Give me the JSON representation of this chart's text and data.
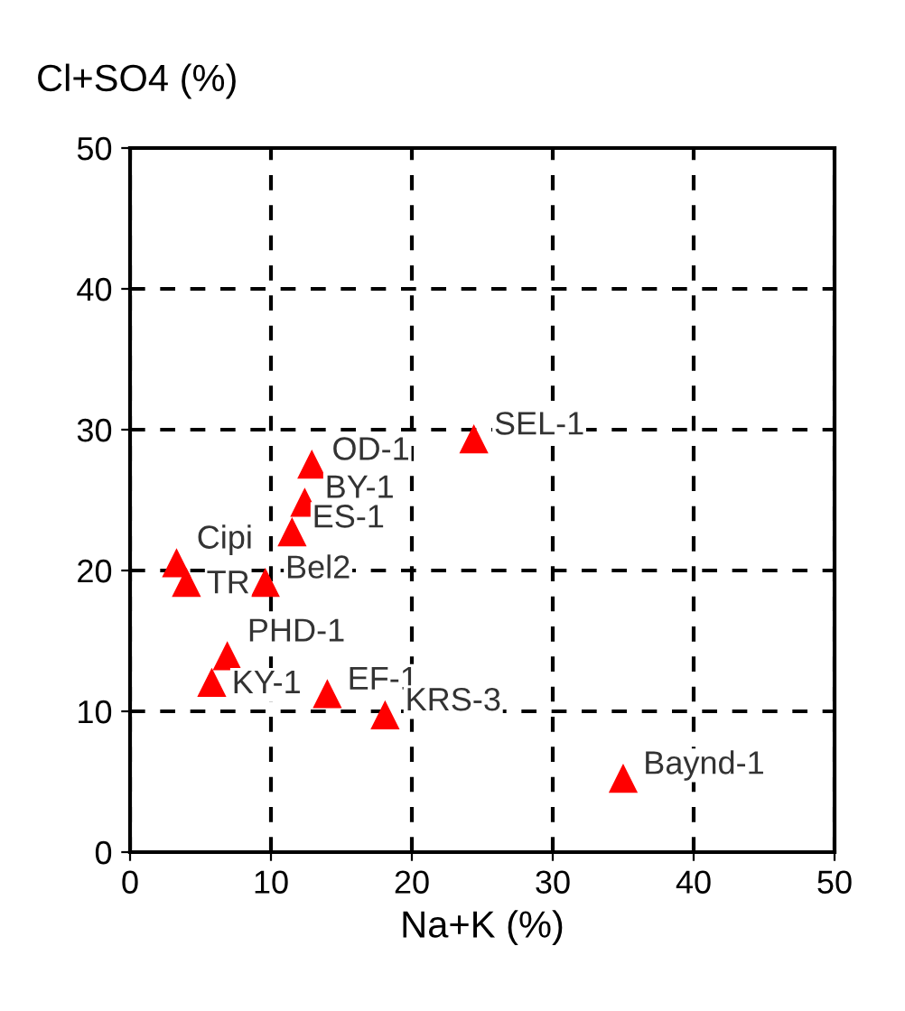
{
  "chart_data": {
    "type": "scatter",
    "ylabel": "Cl+SO4 (%)",
    "xlabel": "Na+K (%)",
    "x": [
      24.4,
      12.9,
      12.4,
      11.5,
      3.3,
      4.0,
      9.6,
      6.9,
      5.8,
      14.0,
      18.1,
      35.0
    ],
    "series": [
      {
        "color": "#ff0000",
        "values": [
          29.3,
          27.5,
          24.8,
          22.7,
          20.5,
          19.1,
          19.1,
          13.9,
          12.0,
          11.2,
          9.7,
          5.2
        ]
      }
    ],
    "annotations": [
      {
        "text": "SEL-1",
        "x": 24.4,
        "y": 29.3
      },
      {
        "text": "OD-1",
        "x": 12.9,
        "y": 27.5
      },
      {
        "text": "BY-1",
        "x": 12.4,
        "y": 24.8
      },
      {
        "text": "ES-1",
        "x": 11.5,
        "y": 22.7
      },
      {
        "text": "Cipi",
        "x": 3.3,
        "y": 20.5
      },
      {
        "text": "TR",
        "x": 4.0,
        "y": 19.1
      },
      {
        "text": "Bel2",
        "x": 9.6,
        "y": 19.1
      },
      {
        "text": "PHD-1",
        "x": 6.9,
        "y": 13.9
      },
      {
        "text": "KY-1",
        "x": 5.8,
        "y": 12.0
      },
      {
        "text": "EF-1",
        "x": 14.0,
        "y": 11.2
      },
      {
        "text": "KRS-3",
        "x": 18.1,
        "y": 9.7
      },
      {
        "text": "Baynd-1",
        "x": 35.0,
        "y": 5.2
      }
    ],
    "xlim": [
      0,
      50
    ],
    "ylim": [
      0,
      50
    ],
    "xticks": [
      0,
      10,
      20,
      30,
      40,
      50
    ],
    "yticks": [
      0,
      10,
      20,
      30,
      40,
      50
    ],
    "grid": true,
    "marker": "triangle",
    "legend": false
  }
}
